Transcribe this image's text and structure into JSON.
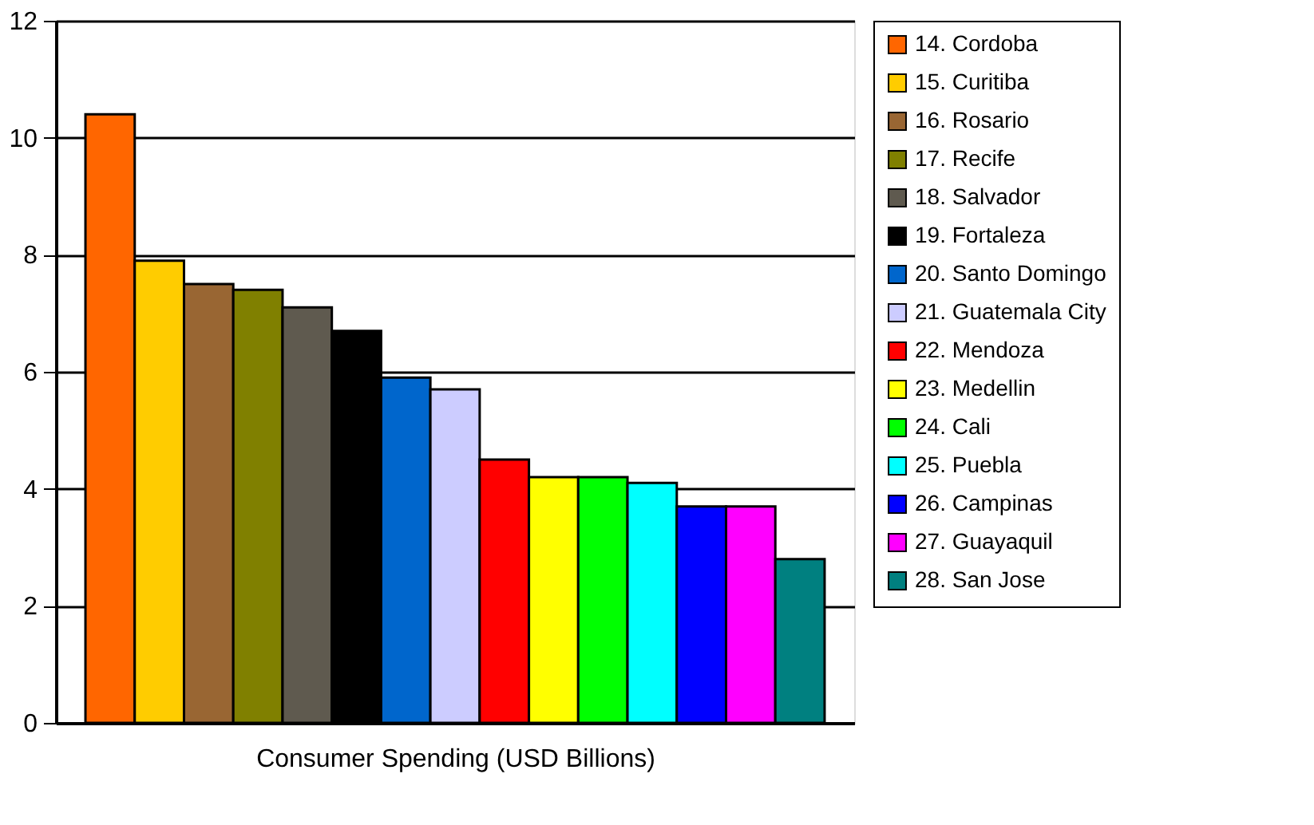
{
  "chart_data": {
    "type": "bar",
    "xlabel": "Consumer Spending (USD Billions)",
    "categories": [
      null
    ],
    "series": [
      {
        "name": "14. Cordoba",
        "color": "#ff6600",
        "values": [
          10.4
        ]
      },
      {
        "name": "15. Curitiba",
        "color": "#ffcc00",
        "values": [
          7.9
        ]
      },
      {
        "name": "16. Rosario",
        "color": "#996633",
        "values": [
          7.5
        ]
      },
      {
        "name": "17. Recife",
        "color": "#808000",
        "values": [
          7.4
        ]
      },
      {
        "name": "18. Salvador",
        "color": "#5f5a4f",
        "values": [
          7.1
        ]
      },
      {
        "name": "19. Fortaleza",
        "color": "#000000",
        "values": [
          6.7
        ]
      },
      {
        "name": "20. Santo Domingo",
        "color": "#0066cc",
        "values": [
          5.9
        ]
      },
      {
        "name": "21. Guatemala City",
        "color": "#ccccff",
        "values": [
          5.7
        ]
      },
      {
        "name": "22. Mendoza",
        "color": "#ff0000",
        "values": [
          4.5
        ]
      },
      {
        "name": "23. Medellin",
        "color": "#ffff00",
        "values": [
          4.2
        ]
      },
      {
        "name": "24. Cali",
        "color": "#00ff00",
        "values": [
          4.2
        ]
      },
      {
        "name": "25. Puebla",
        "color": "#00ffff",
        "values": [
          4.1
        ]
      },
      {
        "name": "26. Campinas",
        "color": "#0000ff",
        "values": [
          3.7
        ]
      },
      {
        "name": "27. Guayaquil",
        "color": "#ff00ff",
        "values": [
          3.7
        ]
      },
      {
        "name": "28. San Jose",
        "color": "#008080",
        "values": [
          2.8
        ]
      }
    ],
    "ylim": [
      0,
      12
    ],
    "yticks": [
      0,
      2,
      4,
      6,
      8,
      10,
      12
    ],
    "grid": "y",
    "legend": "right"
  }
}
